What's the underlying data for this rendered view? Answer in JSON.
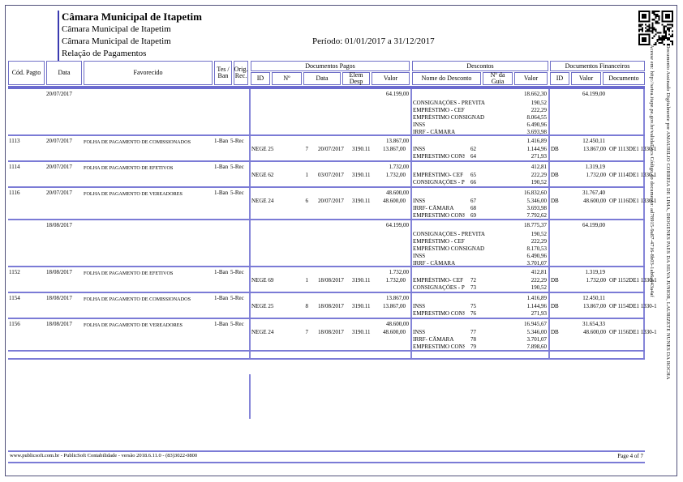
{
  "header": {
    "title": "Câmara Municipal de Itapetim",
    "subtitle1": "Câmara Municipal de Itapetim",
    "subtitle2": "Câmara Municipal de Itapetim",
    "report_name": "Relação de Pagamentos",
    "period": "Período: 01/01/2017 a 31/12/2017"
  },
  "signature": {
    "line1": "Documento Assinado Digitalmente por AMAURILIO CORREIA DE LIMA, DIOGENES PAES DA SILVA JUNIOR, LAURIZETE NUNES DA ROCHA",
    "line2": "Acesse em: http://setea.itape.pe.gov.br/validaDocs Código do documento: ad78915-9a87-4716-8b03-1ab6a943a4af"
  },
  "table": {
    "groups": {
      "pagos": "Documentos Pagos",
      "descontos": "Descontos",
      "financeiros": "Documentos Financeiros"
    },
    "columns": {
      "cod": "Cód. Pagto",
      "data": "Data",
      "favorecido": "Favorecido",
      "tes_ban": "Tes / Ban",
      "orig_rec": "Orig. Rec.",
      "id": "ID",
      "num": "Nº",
      "doc_data": "Data",
      "elem": "Elem Desp",
      "valor": "Valor",
      "nome_desconto": "Nome do Desconto",
      "guia": "Nº da Guia",
      "desc_valor": "Valor",
      "fin_id": "ID",
      "fin_valor": "Valor",
      "documento": "Documento"
    }
  },
  "sections": [
    {
      "summary": {
        "date": "20/07/2017",
        "pagos_valor": "64.199,00",
        "desc_total": "18.662,30",
        "descontos": [
          {
            "nome": "CONSIGNAÇÕES - PREVITA",
            "guia": "",
            "valor": "190,52"
          },
          {
            "nome": "EMPRÉSTIMO - CEF",
            "guia": "",
            "valor": "222,29"
          },
          {
            "nome": "EMPRÉSTIMO CONSIGNAD",
            "guia": "",
            "valor": "8.064,55"
          },
          {
            "nome": "INSS",
            "guia": "",
            "valor": "6.490,96"
          },
          {
            "nome": "IRRF - CÂMARA",
            "guia": "",
            "valor": "3.693,98"
          }
        ],
        "fin_valor": "64.199,00"
      },
      "rows": [
        {
          "cod": "1113",
          "data": "20/07/2017",
          "favorecido": "FOLHA DE PAGAMENTO DE COMISSIONADOS",
          "tes_ban": "1-Ban",
          "orig_rec": "5-Rec",
          "pagos": {
            "id": "NEGE 25",
            "num": "7",
            "data": "20/07/2017",
            "elem": "3190.11",
            "valor": "13.867,00"
          },
          "desc_total": "1.416,89",
          "descontos": [
            {
              "nome": "INSS",
              "guia": "62",
              "valor": "1.144,96"
            },
            {
              "nome": "EMPRESTIMO CONSIGN",
              "guia": "64",
              "valor": "271,93"
            }
          ],
          "fin": {
            "liquido": "12.450,11",
            "id": "DB",
            "valor": "13.867,00",
            "doc": "OP 1113DE1 1330-1"
          }
        },
        {
          "cod": "1114",
          "data": "20/07/2017",
          "favorecido": "FOLHA DE PAGAMENTO DE EFETIVOS",
          "tes_ban": "1-Ban",
          "orig_rec": "5-Rec",
          "pagos": {
            "id": "NEGE 62",
            "num": "1",
            "data": "03/07/2017",
            "elem": "3190.11",
            "valor": "1.732,00"
          },
          "desc_total": "412,81",
          "descontos": [
            {
              "nome": "EMPRÉSTIMO- CEF",
              "guia": "65",
              "valor": "222,29"
            },
            {
              "nome": "CONSIGNAÇÕES - PREV",
              "guia": "66",
              "valor": "190,52"
            }
          ],
          "fin": {
            "liquido": "1.319,19",
            "id": "DB",
            "valor": "1.732,00",
            "doc": "OP 1114DE1 1330-1"
          }
        },
        {
          "cod": "1116",
          "data": "20/07/2017",
          "favorecido": "FOLHA DE PAGAMENTO DE VEREADORES",
          "tes_ban": "1-Ban",
          "orig_rec": "5-Rec",
          "pagos": {
            "id": "NEGE 24",
            "num": "6",
            "data": "20/07/2017",
            "elem": "3190.11",
            "valor": "48.600,00"
          },
          "desc_total": "16.832,60",
          "descontos": [
            {
              "nome": "INSS",
              "guia": "67",
              "valor": "5.346,00"
            },
            {
              "nome": "IRRF- CÂMARA",
              "guia": "68",
              "valor": "3.693,98"
            },
            {
              "nome": "EMPRESTIMO CONSIGN",
              "guia": "69",
              "valor": "7.792,62"
            }
          ],
          "fin": {
            "liquido": "31.767,40",
            "id": "DB",
            "valor": "48.600,00",
            "doc": "OP 1116DE1 1330-1"
          }
        }
      ]
    },
    {
      "summary": {
        "date": "18/08/2017",
        "pagos_valor": "64.199,00",
        "desc_total": "18.775,37",
        "descontos": [
          {
            "nome": "CONSIGNAÇÕES - PREVITA",
            "guia": "",
            "valor": "190,52"
          },
          {
            "nome": "EMPRÉSTIMO - CEF",
            "guia": "",
            "valor": "222,29"
          },
          {
            "nome": "EMPRÉSTIMO CONSIGNAD",
            "guia": "",
            "valor": "8.170,53"
          },
          {
            "nome": "INSS",
            "guia": "",
            "valor": "6.490,96"
          },
          {
            "nome": "IRRF - CÂMARA",
            "guia": "",
            "valor": "3.701,07"
          }
        ],
        "fin_valor": "64.199,00"
      },
      "rows": [
        {
          "cod": "1152",
          "data": "18/08/2017",
          "favorecido": "FOLHA DE PAGAMENTO DE EFETIVOS",
          "tes_ban": "1-Ban",
          "orig_rec": "5-Rec",
          "pagos": {
            "id": "NEGE 69",
            "num": "1",
            "data": "18/08/2017",
            "elem": "3190.11",
            "valor": "1.732,00"
          },
          "desc_total": "412,81",
          "descontos": [
            {
              "nome": "EMPRÉSTIMO- CEF",
              "guia": "72",
              "valor": "222,29"
            },
            {
              "nome": "CONSIGNAÇÕES - PREV",
              "guia": "73",
              "valor": "190,52"
            }
          ],
          "fin": {
            "liquido": "1.319,19",
            "id": "DB",
            "valor": "1.732,00",
            "doc": "OP 1152DE1 1330-1"
          }
        },
        {
          "cod": "1154",
          "data": "18/08/2017",
          "favorecido": "FOLHA DE PAGAMENTO DE COMISSIONADOS",
          "tes_ban": "1-Ban",
          "orig_rec": "5-Rec",
          "pagos": {
            "id": "NEGE 25",
            "num": "8",
            "data": "18/08/2017",
            "elem": "3190.11",
            "valor": "13.867,00"
          },
          "desc_total": "1.416,89",
          "descontos": [
            {
              "nome": "INSS",
              "guia": "75",
              "valor": "1.144,96"
            },
            {
              "nome": "EMPRESTIMO CONSIGN",
              "guia": "76",
              "valor": "271,93"
            }
          ],
          "fin": {
            "liquido": "12.450,11",
            "id": "DB",
            "valor": "13.867,00",
            "doc": "OP 1154DE1 1330-1"
          }
        },
        {
          "cod": "1156",
          "data": "18/08/2017",
          "favorecido": "FOLHA DE PAGAMENTO DE VEREADORES",
          "tes_ban": "1-Ban",
          "orig_rec": "5-Rec",
          "pagos": {
            "id": "NEGE 24",
            "num": "7",
            "data": "18/08/2017",
            "elem": "3190.11",
            "valor": "48.600,00"
          },
          "desc_total": "16.945,67",
          "descontos": [
            {
              "nome": "INSS",
              "guia": "77",
              "valor": "5.346,00"
            },
            {
              "nome": "IRRF- CÂMARA",
              "guia": "78",
              "valor": "3.701,07"
            },
            {
              "nome": "EMPRESTIMO CONSIGN",
              "guia": "79",
              "valor": "7.898,60"
            }
          ],
          "fin": {
            "liquido": "31.654,33",
            "id": "DB",
            "valor": "48.600,00",
            "doc": "OP 1156DE1 1330-1"
          }
        }
      ]
    }
  ],
  "footer": {
    "left": "www.publicsoft.com.br - PublicSoft Contabilidade - versão 2018.6.11.0 - (83)3022-0800",
    "right": "Page 4 of 7"
  }
}
